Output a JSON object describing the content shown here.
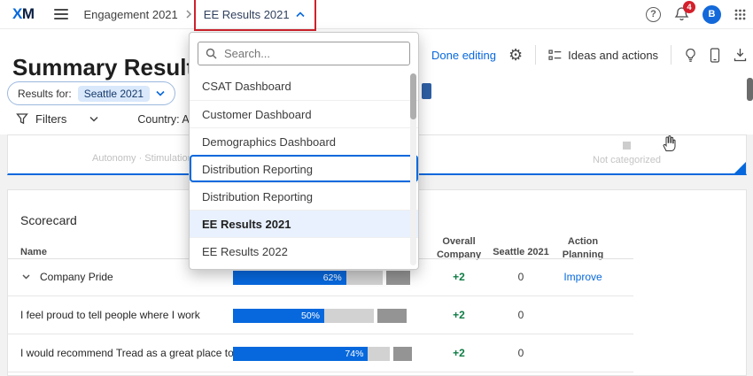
{
  "colors": {
    "accent": "#0768dd",
    "positive": "#0e7c44",
    "badge_red": "#d4202c",
    "annotation_red": "#d0222a",
    "bar_neutral": "#d2d2d2",
    "bar_unfavorable": "#949494",
    "selected_item_bg": "#e8f1fd"
  },
  "icons": {
    "settings_glyph": "⚙"
  },
  "navbar": {
    "logo_x": "X",
    "logo_m": "M",
    "breadcrumb_parent": "Engagement 2021",
    "breadcrumb_current": "EE Results 2021",
    "help_glyph": "?",
    "notification_count": "4",
    "avatar_initial": "B"
  },
  "header": {
    "title": "Summary Results",
    "done_editing_label": "Done editing",
    "ideas_actions_label": "Ideas and actions"
  },
  "results_bar": {
    "label": "Results for:",
    "selected_value": "Seattle 2021"
  },
  "filters_bar": {
    "filters_label": "Filters",
    "country_filter": "Country: All"
  },
  "category_strip": {
    "left_category": "Autonomy · Stimulation",
    "right_category": "Not categorized"
  },
  "dashboard_dropdown": {
    "search_placeholder": "Search...",
    "items": [
      {
        "label": "CSAT Dashboard",
        "state": "normal"
      },
      {
        "label": "Customer Dashboard",
        "state": "normal"
      },
      {
        "label": "Demographics Dashboard",
        "state": "normal"
      },
      {
        "label": "Distribution Reporting",
        "state": "focused"
      },
      {
        "label": "Distribution Reporting",
        "state": "normal"
      },
      {
        "label": "EE Results 2021",
        "state": "selected"
      },
      {
        "label": "EE Results 2022",
        "state": "normal"
      }
    ]
  },
  "scorecard": {
    "title": "Scorecard",
    "columns": {
      "name": "Name",
      "overall": "Overall Company",
      "seattle": "Seattle 2021",
      "action": "Action Planning"
    },
    "rows": [
      {
        "name": "Company Pride",
        "favorable": 62,
        "neutral": 20,
        "unfavorable": 13,
        "favorable_label": "62%",
        "overall_change": "+2",
        "seattle_value": "0",
        "action": "Improve"
      },
      {
        "name": "I feel proud to tell people where I work",
        "favorable": 50,
        "neutral": 27,
        "unfavorable": 16,
        "favorable_label": "50%",
        "overall_change": "+2",
        "seattle_value": "0",
        "action": ""
      },
      {
        "name": "I would recommend Tread as a great place to work",
        "favorable": 74,
        "neutral": 12,
        "unfavorable": 10,
        "favorable_label": "74%",
        "overall_change": "+2",
        "seattle_value": "0",
        "action": ""
      }
    ]
  }
}
